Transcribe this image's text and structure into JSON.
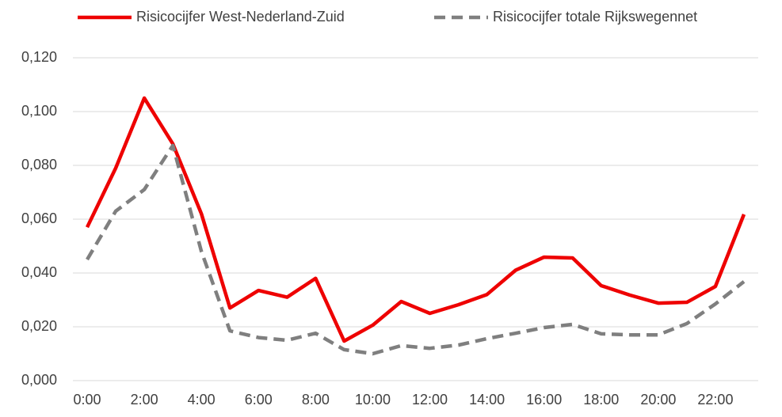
{
  "chart_data": {
    "type": "line",
    "categories": [
      "0:00",
      null,
      "2:00",
      null,
      "4:00",
      null,
      "6:00",
      null,
      "8:00",
      null,
      "10:00",
      null,
      "12:00",
      null,
      "14:00",
      null,
      "16:00",
      null,
      "18:00",
      null,
      "20:00",
      null,
      "22:00",
      null
    ],
    "series": [
      {
        "name": "Risicocijfer West-Nederland-Zuid",
        "color": "#ee0000",
        "dash": false,
        "values": [
          0.057,
          0.079,
          0.105,
          0.088,
          0.062,
          0.027,
          0.0335,
          0.031,
          0.038,
          0.0147,
          0.0206,
          0.0294,
          0.025,
          0.0282,
          0.032,
          0.041,
          0.0459,
          0.0456,
          0.0353,
          0.0318,
          0.0288,
          0.0291,
          0.035,
          0.0618
        ]
      },
      {
        "name": "Risicocijfer totale Rijkswegennet",
        "color": "#7f7f7f",
        "dash": true,
        "values": [
          0.045,
          0.063,
          0.071,
          0.0874,
          0.048,
          0.0185,
          0.016,
          0.015,
          0.0176,
          0.0115,
          0.01,
          0.013,
          0.012,
          0.0132,
          0.0156,
          0.0176,
          0.0197,
          0.0209,
          0.0174,
          0.017,
          0.017,
          0.0212,
          0.0285,
          0.0368
        ]
      }
    ],
    "ylim": [
      0,
      0.12
    ],
    "yticks": [
      {
        "value": 0,
        "label": "0,000"
      },
      {
        "value": 0.02,
        "label": "0,020"
      },
      {
        "value": 0.04,
        "label": "0,040"
      },
      {
        "value": 0.06,
        "label": "0,060"
      },
      {
        "value": 0.08,
        "label": "0,080"
      },
      {
        "value": 0.1,
        "label": "0,100"
      },
      {
        "value": 0.12,
        "label": "0,120"
      }
    ],
    "grid": true,
    "legend": "top"
  }
}
